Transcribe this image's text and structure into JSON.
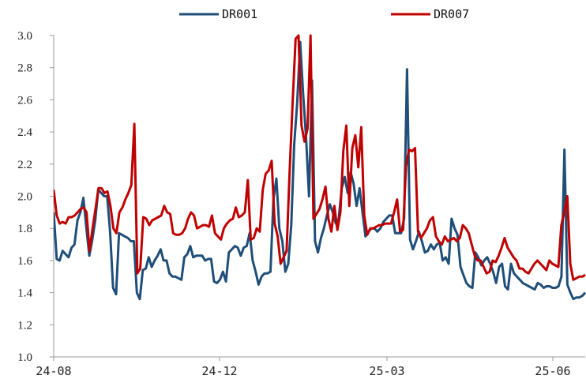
{
  "chart_data": {
    "type": "line",
    "title": "",
    "xlabel": "",
    "ylabel": "",
    "ylim": [
      1.0,
      3.0
    ],
    "yticks": [
      "1.0",
      "1.2",
      "1.4",
      "1.6",
      "1.8",
      "2.0",
      "2.2",
      "2.4",
      "2.6",
      "2.8",
      "3.0"
    ],
    "x_tick_labels": [
      "24-08",
      "24-12",
      "25-03",
      "25-06"
    ],
    "legend_position": "top",
    "grid": false,
    "series": [
      {
        "name": "DR001",
        "color": "#1f4e79",
        "values": [
          1.9,
          1.61,
          1.6,
          1.66,
          1.64,
          1.62,
          1.68,
          1.7,
          1.85,
          1.9,
          1.99,
          1.8,
          1.63,
          1.73,
          1.85,
          2.04,
          2.02,
          2.0,
          2.0,
          1.78,
          1.43,
          1.39,
          1.77,
          1.76,
          1.75,
          1.74,
          1.72,
          1.72,
          1.4,
          1.36,
          1.54,
          1.55,
          1.62,
          1.56,
          1.6,
          1.63,
          1.67,
          1.6,
          1.6,
          1.52,
          1.5,
          1.5,
          1.49,
          1.48,
          1.62,
          1.64,
          1.69,
          1.62,
          1.63,
          1.63,
          1.63,
          1.6,
          1.61,
          1.61,
          1.47,
          1.46,
          1.48,
          1.53,
          1.47,
          1.65,
          1.67,
          1.69,
          1.68,
          1.63,
          1.68,
          1.69,
          1.77,
          1.6,
          1.53,
          1.45,
          1.5,
          1.52,
          1.52,
          1.53,
          1.98,
          2.11,
          1.8,
          1.72,
          1.53,
          1.58,
          1.82,
          2.32,
          2.58,
          2.96,
          2.64,
          2.36,
          2.0,
          2.72,
          1.72,
          1.65,
          1.74,
          1.8,
          1.88,
          1.95,
          1.9,
          1.83,
          1.86,
          2.05,
          2.12,
          2.02,
          2.15,
          2.08,
          1.94,
          2.05,
          1.9,
          1.75,
          1.78,
          1.8,
          1.8,
          1.78,
          1.8,
          1.84,
          1.86,
          1.88,
          1.88,
          1.77,
          1.77,
          1.77,
          1.86,
          2.79,
          1.73,
          1.67,
          1.72,
          1.78,
          1.72,
          1.65,
          1.66,
          1.7,
          1.67,
          1.7,
          1.71,
          1.6,
          1.62,
          1.58,
          1.86,
          1.8,
          1.76,
          1.56,
          1.51,
          1.46,
          1.44,
          1.43,
          1.65,
          1.62,
          1.57,
          1.6,
          1.62,
          1.58,
          1.53,
          1.46,
          1.56,
          1.58,
          1.44,
          1.42,
          1.58,
          1.52,
          1.5,
          1.48,
          1.46,
          1.45,
          1.44,
          1.43,
          1.42,
          1.46,
          1.45,
          1.43,
          1.44,
          1.44,
          1.43,
          1.43,
          1.44,
          1.5,
          2.29,
          1.45,
          1.4,
          1.36,
          1.37,
          1.37,
          1.38,
          1.4
        ]
      },
      {
        "name": "DR007",
        "color": "#c00000",
        "values": [
          2.04,
          1.88,
          1.83,
          1.84,
          1.83,
          1.87,
          1.87,
          1.88,
          1.9,
          1.92,
          1.93,
          1.9,
          1.66,
          1.8,
          1.92,
          2.05,
          2.05,
          2.02,
          2.03,
          1.94,
          1.8,
          1.77,
          1.9,
          1.93,
          1.98,
          2.02,
          2.07,
          2.45,
          1.52,
          1.55,
          1.87,
          1.86,
          1.82,
          1.85,
          1.86,
          1.87,
          1.88,
          1.94,
          1.9,
          1.89,
          1.77,
          1.76,
          1.76,
          1.77,
          1.8,
          1.86,
          1.9,
          1.88,
          1.8,
          1.81,
          1.82,
          1.82,
          1.81,
          1.88,
          1.77,
          1.75,
          1.73,
          1.8,
          1.83,
          1.85,
          1.86,
          1.93,
          1.87,
          1.88,
          1.9,
          2.1,
          1.73,
          1.74,
          1.8,
          1.78,
          2.04,
          2.14,
          2.16,
          2.22,
          1.83,
          1.75,
          1.58,
          1.62,
          1.66,
          2.15,
          2.58,
          2.98,
          3.0,
          2.44,
          2.34,
          2.42,
          3.0,
          1.86,
          1.89,
          1.92,
          1.98,
          2.06,
          1.86,
          1.78,
          1.94,
          1.79,
          1.9,
          2.28,
          2.44,
          1.94,
          2.3,
          2.38,
          2.18,
          2.43,
          1.88,
          1.76,
          1.8,
          1.8,
          1.81,
          1.82,
          1.82,
          1.83,
          1.83,
          1.83,
          1.9,
          1.98,
          1.78,
          1.79,
          2.19,
          2.29,
          2.28,
          2.3,
          1.78,
          1.74,
          1.77,
          1.8,
          1.85,
          1.87,
          1.75,
          1.72,
          1.7,
          1.75,
          1.72,
          1.73,
          1.74,
          1.72,
          1.74,
          1.82,
          1.8,
          1.77,
          1.7,
          1.63,
          1.6,
          1.6,
          1.56,
          1.52,
          1.53,
          1.6,
          1.59,
          1.63,
          1.68,
          1.74,
          1.68,
          1.65,
          1.62,
          1.6,
          1.55,
          1.55,
          1.53,
          1.52,
          1.55,
          1.58,
          1.6,
          1.58,
          1.56,
          1.54,
          1.6,
          1.58,
          1.57,
          1.56,
          1.82,
          1.9,
          2.0,
          1.58,
          1.48,
          1.49,
          1.5,
          1.5,
          1.51
        ]
      }
    ]
  }
}
